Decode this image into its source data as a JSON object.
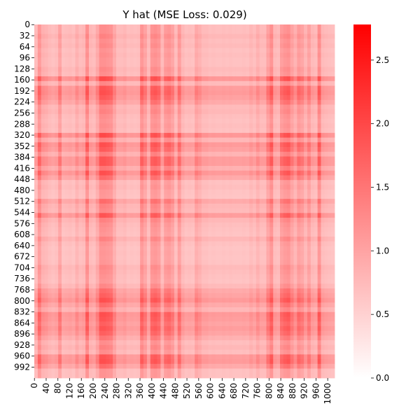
{
  "chart_data": {
    "type": "heatmap",
    "title": "Y hat (MSE Loss: 0.029)",
    "xlabel": "",
    "ylabel": "",
    "rows": 1024,
    "cols": 1024,
    "y_tick_labels": [
      "0",
      "32",
      "64",
      "96",
      "128",
      "160",
      "192",
      "224",
      "256",
      "288",
      "320",
      "352",
      "384",
      "416",
      "448",
      "480",
      "512",
      "544",
      "576",
      "608",
      "640",
      "672",
      "704",
      "736",
      "768",
      "800",
      "832",
      "864",
      "896",
      "928",
      "960",
      "992"
    ],
    "x_tick_labels": [
      "0",
      "40",
      "80",
      "120",
      "160",
      "200",
      "240",
      "280",
      "320",
      "360",
      "400",
      "440",
      "480",
      "520",
      "560",
      "600",
      "640",
      "680",
      "720",
      "760",
      "800",
      "840",
      "880",
      "920",
      "960",
      "1000"
    ],
    "colorbar": {
      "min": 0.0,
      "max": 2.78,
      "ticks": [
        "0.0",
        "0.5",
        "1.0",
        "1.5",
        "2.0",
        "2.5"
      ],
      "tick_values": [
        0.0,
        0.5,
        1.0,
        1.5,
        2.0,
        2.5
      ],
      "color_low": "#ffffff",
      "color_high": "#ff0000"
    },
    "x_band_strength": [
      0.95,
      1.45,
      1.1,
      1.05,
      0.95,
      0.9,
      0.95,
      1.3,
      0.9,
      0.92,
      0.95,
      0.9,
      1.1,
      0.95,
      1.0,
      1.55,
      1.0,
      0.95,
      1.2,
      1.6,
      1.6,
      1.55,
      1.5,
      1.2,
      0.95,
      0.95,
      1.0,
      0.9,
      0.92,
      0.9,
      0.92,
      1.5,
      1.3,
      0.95,
      1.5,
      1.55,
      1.45,
      1.0,
      1.4,
      1.45,
      1.3,
      0.95,
      1.4,
      1.0,
      0.9,
      0.92,
      0.9,
      1.2,
      1.1,
      0.95,
      0.95,
      0.9,
      0.92,
      0.9,
      0.9,
      0.92,
      0.9,
      0.92,
      0.9,
      0.9,
      0.9,
      0.92,
      0.9,
      1.0,
      0.92,
      1.1,
      0.95,
      0.95,
      1.3,
      1.55,
      1.0,
      0.95,
      1.4,
      1.5,
      1.55,
      1.3,
      1.1,
      1.4,
      1.3,
      1.05,
      1.3,
      1.0,
      0.95,
      1.55,
      1.0,
      0.95,
      0.92,
      0.9
    ],
    "y_band_strength": [
      1.0,
      1.0,
      1.1,
      1.0,
      1.05,
      0.95,
      1.0,
      0.95,
      0.95,
      1.05,
      1.0,
      1.6,
      1.05,
      1.5,
      1.55,
      1.45,
      1.3,
      1.05,
      1.1,
      1.0,
      0.95,
      1.0,
      0.95,
      1.6,
      1.1,
      1.55,
      1.45,
      1.15,
      1.5,
      1.5,
      1.2,
      1.55,
      1.3,
      0.95,
      1.0,
      0.92,
      0.9,
      1.3,
      1.1,
      1.05,
      1.5,
      1.1,
      1.0,
      0.95,
      0.92,
      1.1,
      0.95,
      0.9,
      0.92,
      0.9,
      0.92,
      1.05,
      1.0,
      0.95,
      0.92,
      1.05,
      1.3,
      1.4,
      1.55,
      1.3,
      1.1,
      1.55,
      1.5,
      1.4,
      1.5,
      1.4,
      1.2,
      1.0,
      1.1,
      1.0,
      1.5,
      1.55,
      1.3,
      0.95,
      0.95
    ]
  }
}
